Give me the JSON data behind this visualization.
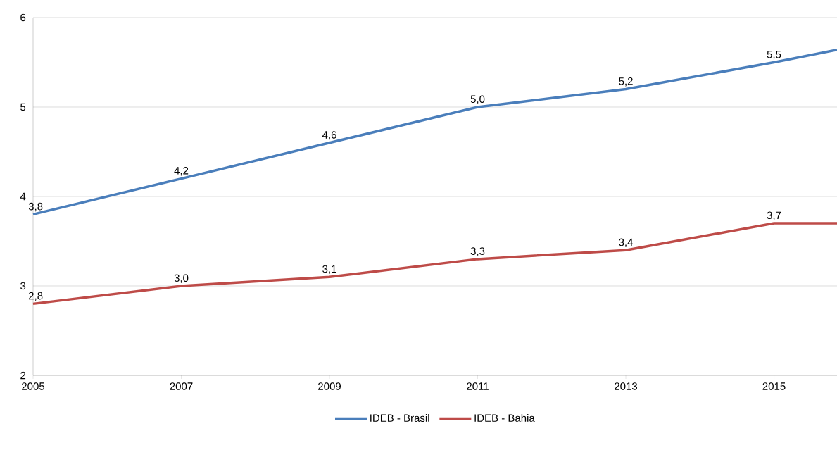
{
  "chart_data": {
    "type": "line",
    "x": [
      2005,
      2007,
      2009,
      2011,
      2013,
      2015,
      2015.85
    ],
    "series": [
      {
        "name": "IDEB - Brasil",
        "color": "#4a7ebb",
        "values": [
          3.8,
          4.2,
          4.6,
          5.0,
          5.2,
          5.5,
          5.64
        ],
        "value_labels": [
          "3,8",
          "4,2",
          "4,6",
          "5,0",
          "5,2",
          "5,5",
          null
        ]
      },
      {
        "name": "IDEB - Bahia",
        "color": "#be4b48",
        "values": [
          2.8,
          3.0,
          3.1,
          3.3,
          3.4,
          3.7,
          3.7
        ],
        "value_labels": [
          "2,8",
          "3,0",
          "3,1",
          "3,3",
          "3,4",
          "3,7",
          null
        ]
      }
    ],
    "xlim": [
      2005,
      2015.85
    ],
    "ylim": [
      2,
      6
    ],
    "xticks": [
      2005,
      2007,
      2009,
      2011,
      2013,
      2015
    ],
    "yticks": [
      2,
      3,
      4,
      5,
      6
    ],
    "grid": "y",
    "legend": "bottom"
  }
}
